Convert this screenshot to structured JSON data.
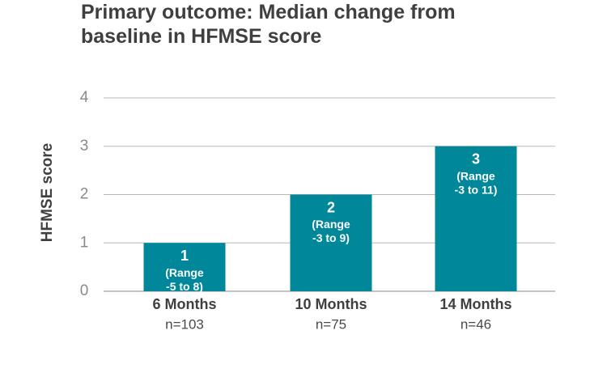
{
  "chart_data": {
    "type": "bar",
    "title_lines": [
      "Primary outcome: Median change from",
      "baseline in HFMSE score"
    ],
    "ylabel": "HFMSE score",
    "xlabel": "",
    "ylim": [
      0,
      4
    ],
    "yticks": [
      0,
      1,
      2,
      3,
      4
    ],
    "grid": true,
    "categories": [
      "6 Months",
      "10 Months",
      "14 Months"
    ],
    "sample_sizes": [
      "n=103",
      "n=75",
      "n=46"
    ],
    "values": [
      1,
      2,
      3
    ],
    "value_labels": [
      "1",
      "2",
      "3"
    ],
    "range_notes": [
      [
        "(Range",
        "-5 to 8)"
      ],
      [
        "(Range",
        "-3 to 9)"
      ],
      [
        "(Range",
        "-3 to 11)"
      ]
    ],
    "colors": {
      "bar": "#00889a",
      "grid": "#b8b8b8",
      "axis": "#8a8a8a"
    }
  }
}
